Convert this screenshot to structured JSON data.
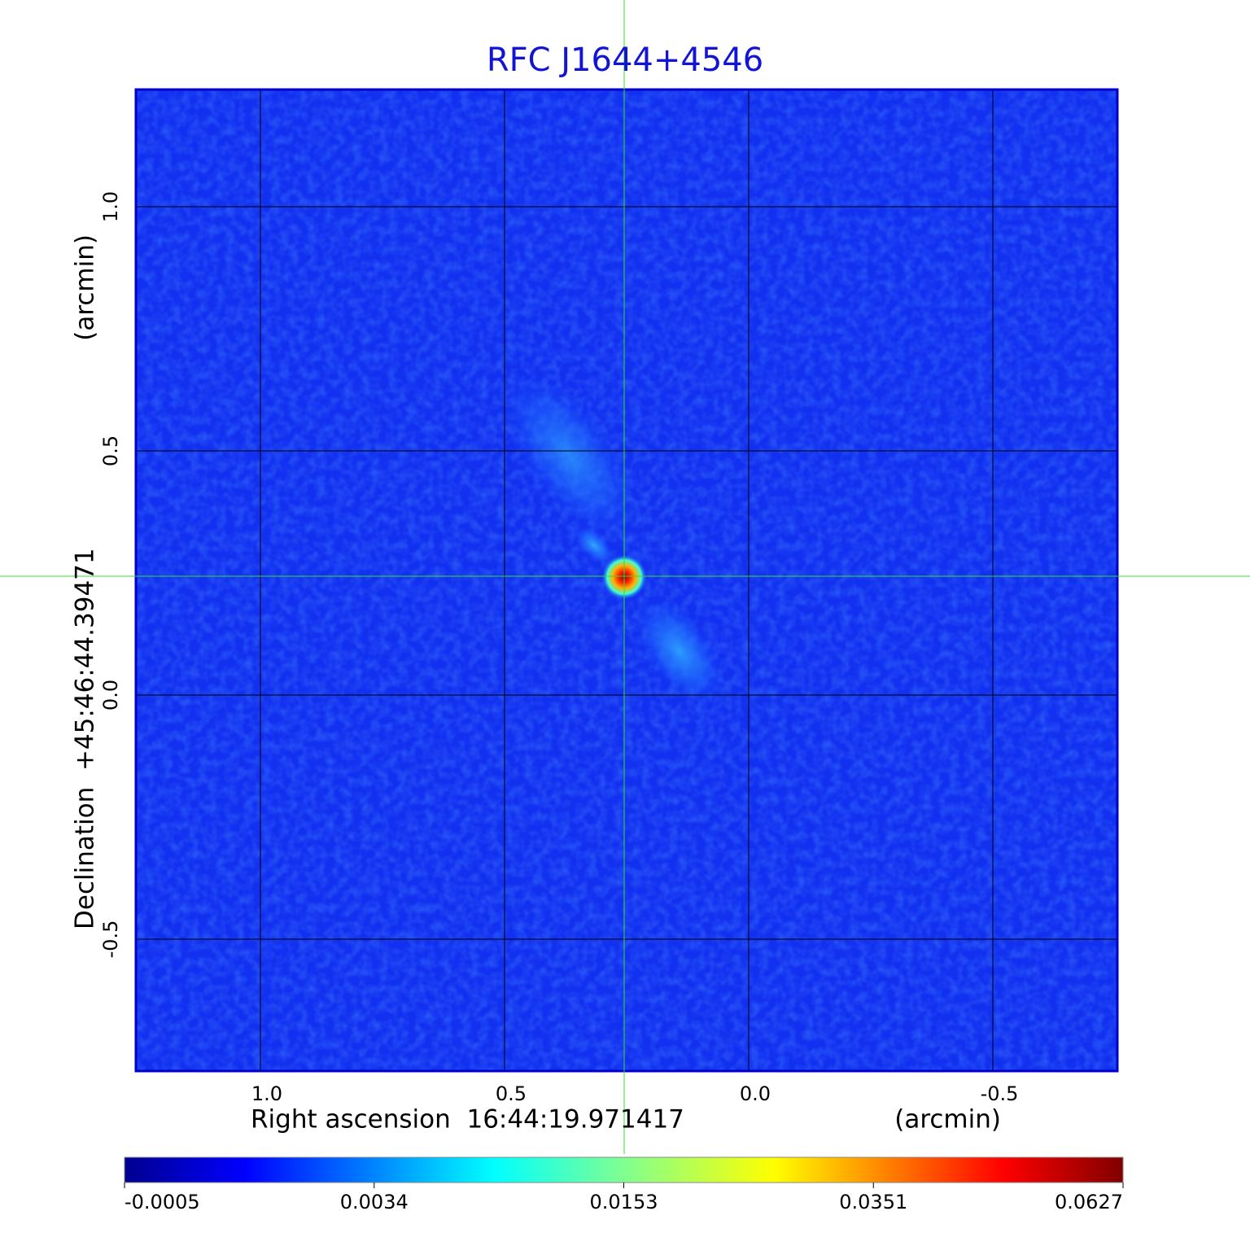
{
  "chart_data": {
    "type": "image",
    "title": "RFC J1644+4546",
    "x_label": "Right ascension  16:44:19.971417",
    "x_unit": "(arcmin)",
    "y_label": "Declination  +45:46:44.39471",
    "y_unit": "(arcmin)",
    "xlim": [
      1.255,
      -0.755
    ],
    "ylim": [
      -0.77,
      1.24
    ],
    "xticks": [
      {
        "value": 1,
        "label": "1.0"
      },
      0.5,
      {
        "value": 0,
        "label": "0.0"
      },
      -0.5
    ],
    "yticks": [
      {
        "value": 1,
        "label": "1.0"
      },
      0.5,
      {
        "value": 0,
        "label": "0.0"
      },
      -0.5
    ],
    "grid": true,
    "colorbar": {
      "lim": [
        -0.0005,
        0.0627
      ],
      "ticks": [
        -0.0005,
        0.0034,
        0.0153,
        0.0351,
        0.0627
      ]
    }
  }
}
